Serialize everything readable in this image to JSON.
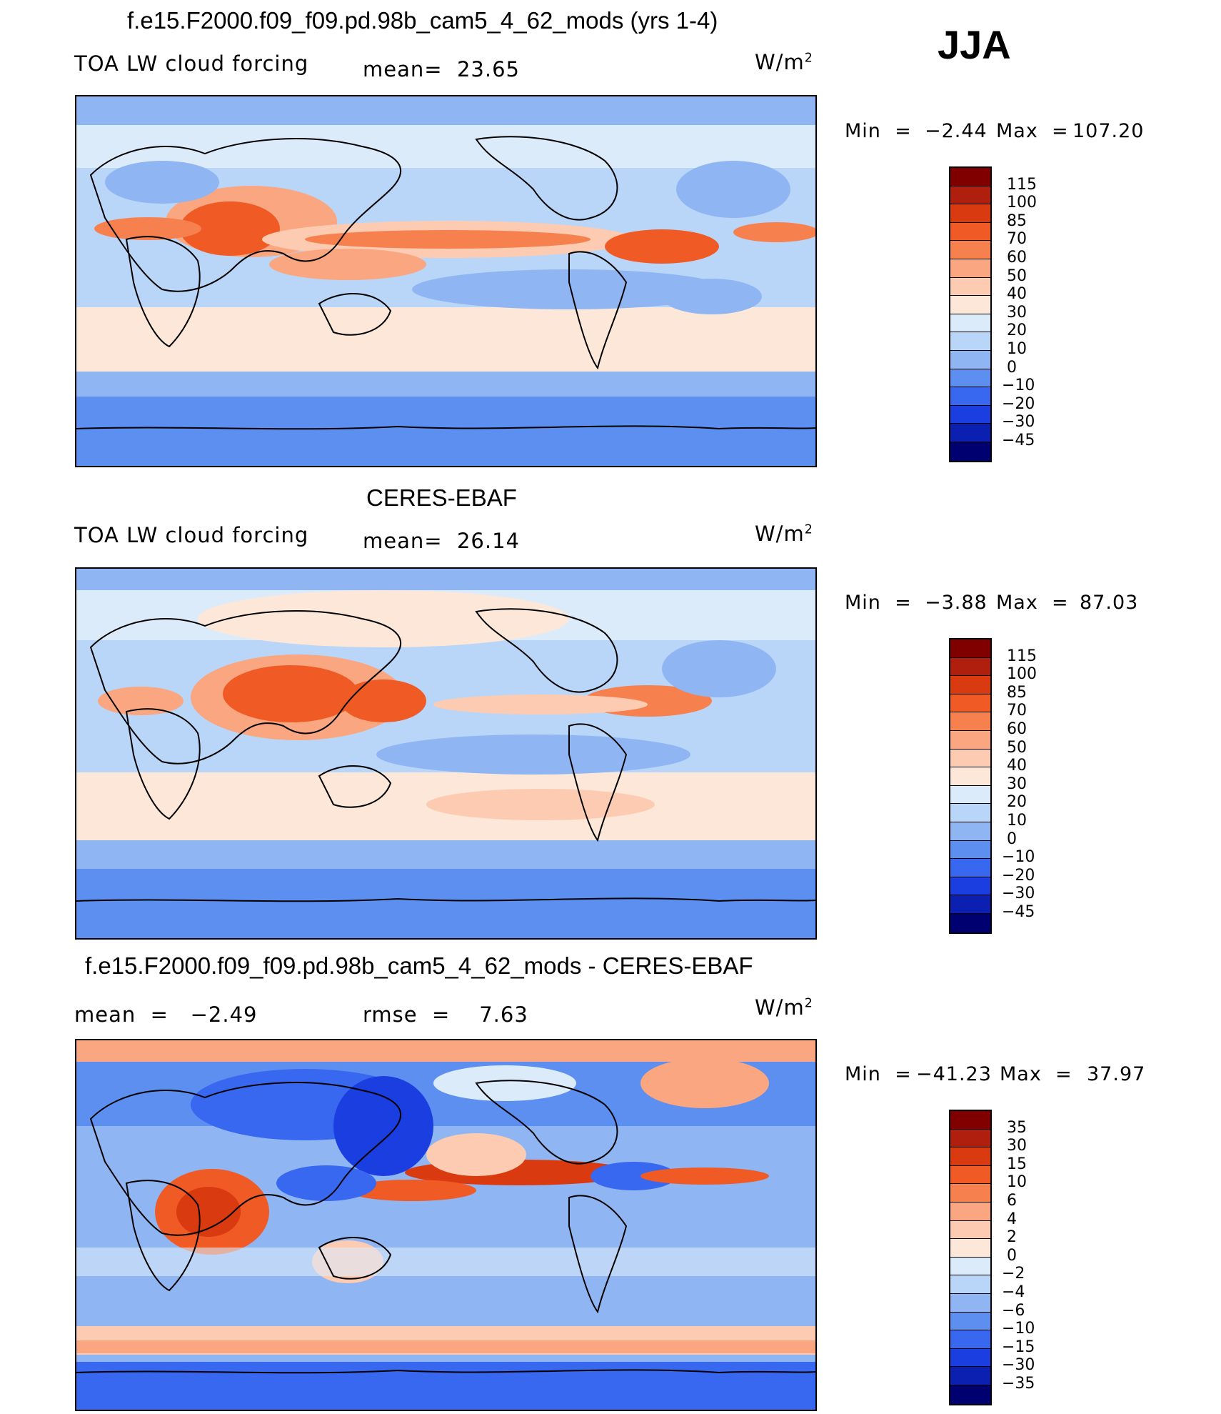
{
  "season": "JJA",
  "panels": [
    {
      "title": "f.e15.F2000.f09_f09.pd.98b_cam5_4_62_mods (yrs 1-4)",
      "left_label": "TOA LW cloud forcing",
      "mid_label": "mean=  23.65",
      "units": "W/m",
      "units_sup": "2",
      "min_label": "Min  =",
      "min_value": "−2.44",
      "max_label": "Max  =",
      "max_value": "107.20",
      "levels": [
        "115",
        "100",
        "85",
        "70",
        "60",
        "50",
        "40",
        "30",
        "20",
        "10",
        "0",
        "−10",
        "−20",
        "−30",
        "−45"
      ]
    },
    {
      "title": "CERES-EBAF",
      "left_label": "TOA LW cloud forcing",
      "mid_label": "mean=  26.14",
      "units": "W/m",
      "units_sup": "2",
      "min_label": "Min  =",
      "min_value": "−3.88",
      "max_label": "Max  =",
      "max_value": "87.03",
      "levels": [
        "115",
        "100",
        "85",
        "70",
        "60",
        "50",
        "40",
        "30",
        "20",
        "10",
        "0",
        "−10",
        "−20",
        "−30",
        "−45"
      ]
    },
    {
      "title": "f.e15.F2000.f09_f09.pd.98b_cam5_4_62_mods - CERES-EBAF",
      "left_label": "mean  =   −2.49",
      "mid_label": "rmse  =    7.63",
      "units": "W/m",
      "units_sup": "2",
      "min_label": "Min  =",
      "min_value": "−41.23",
      "max_label": "Max  =",
      "max_value": "37.97",
      "levels": [
        "35",
        "30",
        "15",
        "10",
        "6",
        "4",
        "2",
        "0",
        "−2",
        "−4",
        "−6",
        "−10",
        "−15",
        "−30",
        "−35"
      ]
    }
  ],
  "colors": {
    "palette": [
      "#800000",
      "#b01e0e",
      "#d93a10",
      "#f05a25",
      "#f7804f",
      "#f9a681",
      "#fdcbb1",
      "#fde7d9",
      "#dcebfa",
      "#b9d6f8",
      "#8fb6f2",
      "#5c8ff0",
      "#3867f0",
      "#1a3ee0",
      "#0b1fb0",
      "#000070"
    ],
    "coast": "#000000"
  }
}
